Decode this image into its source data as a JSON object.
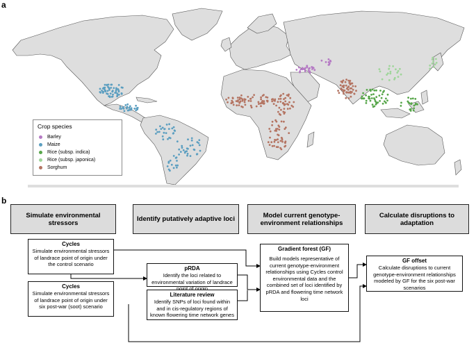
{
  "panel_a": {
    "label": "a",
    "legend": {
      "title": "Crop species",
      "items": [
        {
          "name": "Barley",
          "color": "#b57ac4"
        },
        {
          "name": "Maize",
          "color": "#5b9ec0"
        },
        {
          "name": "Rice (subsp. indica)",
          "color": "#57a64a"
        },
        {
          "name": "Rice (subsp. japonica)",
          "color": "#9fd59a"
        },
        {
          "name": "Sorghum",
          "color": "#b47462"
        }
      ]
    },
    "colors": {
      "land": "#dedede",
      "ocean": "#ffffff",
      "border": "#555555"
    }
  },
  "panel_b": {
    "label": "b",
    "headers": [
      "Simulate environmental stressors",
      "Identify putatively adaptive loci",
      "Model current genotype-environment relationships",
      "Calculate disruptions to adaptation"
    ],
    "boxes": {
      "cycles1": {
        "title": "Cycles",
        "text": "Simulate environmental stressors of landrace point of origin under the control scenario"
      },
      "cycles2": {
        "title": "Cycles",
        "text": "Simulate environmental stressors of landrace point of origin under six post-war (soot) scenario"
      },
      "prda": {
        "title": "pRDA",
        "text": "Identify the loci related to environmental variation of landrace point of origin"
      },
      "lit": {
        "title": "Literature review",
        "text": "Identify SNPs of loci found within and in cis-regulatory regions of known flowering time network genes"
      },
      "gf": {
        "title": "Gradient forest (GF)",
        "text": "Build models representative of current genotype-environment relationships using Cycles control environmental data and the combined set of loci identified by pRDA and flowering time network loci"
      },
      "gfoffset": {
        "title": "GF offset",
        "text": "Calculate disruptions to current genotype-environment relationships modeled by GF for the six post-war scenarios"
      }
    }
  }
}
